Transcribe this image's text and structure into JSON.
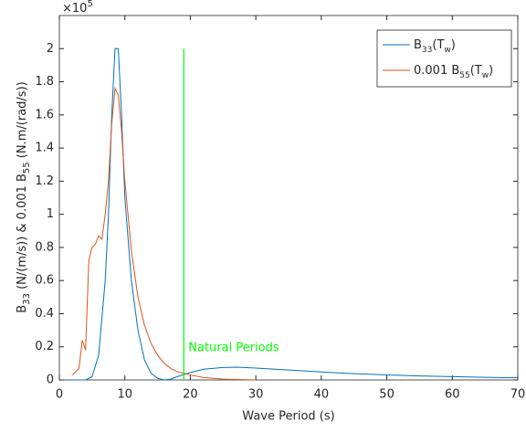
{
  "chart_data": {
    "type": "line",
    "xlabel": "Wave Period (s)",
    "ylabel": [
      "B",
      "33",
      " (N/(m/s)) & 0.001 B",
      "55",
      " (N.m/(rad/s))"
    ],
    "y_multiplier": [
      "×10",
      "5"
    ],
    "xlim": [
      0,
      70
    ],
    "xticks": [
      0,
      10,
      20,
      30,
      40,
      50,
      60,
      70
    ],
    "ylim": [
      0,
      2.2
    ],
    "yticks": [
      0,
      0.2,
      0.4,
      0.6,
      0.8,
      1,
      1.2,
      1.4,
      1.6,
      1.8,
      2
    ],
    "legend": "upper right",
    "series": [
      {
        "name": [
          "B",
          "33",
          "(T",
          "w",
          ")"
        ],
        "color": "#0072bd",
        "x": [
          2,
          4,
          5,
          6,
          7,
          7.5,
          8,
          8.5,
          9,
          9.5,
          10,
          11,
          12,
          13,
          14,
          15,
          16,
          17,
          18,
          20,
          22,
          25,
          27,
          30,
          35,
          40,
          45,
          50,
          55,
          60,
          65,
          70
        ],
        "values": [
          0,
          0,
          0.02,
          0.15,
          0.6,
          1.0,
          1.6,
          2.0,
          2.0,
          1.6,
          1.1,
          0.6,
          0.3,
          0.12,
          0.04,
          0.01,
          0,
          0.005,
          0.02,
          0.045,
          0.065,
          0.075,
          0.077,
          0.072,
          0.06,
          0.048,
          0.038,
          0.03,
          0.024,
          0.02,
          0.016,
          0.013
        ]
      },
      {
        "name": [
          "0.001 B",
          "55",
          "(T",
          "w",
          ")"
        ],
        "color": "#d95319",
        "x": [
          2,
          3,
          3.5,
          4,
          4.5,
          5,
          5.5,
          6,
          6.5,
          7,
          7.5,
          8,
          8.5,
          9,
          9.5,
          10,
          11,
          12,
          13,
          14,
          15,
          16,
          17,
          18,
          19,
          20,
          22,
          25,
          30
        ],
        "values": [
          0.03,
          0.07,
          0.24,
          0.18,
          0.72,
          0.8,
          0.82,
          0.87,
          0.85,
          1.0,
          1.2,
          1.55,
          1.76,
          1.72,
          1.5,
          1.2,
          0.78,
          0.5,
          0.33,
          0.22,
          0.15,
          0.1,
          0.07,
          0.05,
          0.04,
          0.03,
          0.015,
          0.005,
          0
        ]
      }
    ],
    "natural_period": {
      "x": [
        19,
        19
      ],
      "values": [
        0,
        2
      ],
      "color": "#00ff00",
      "label": "Natural Periods"
    }
  }
}
